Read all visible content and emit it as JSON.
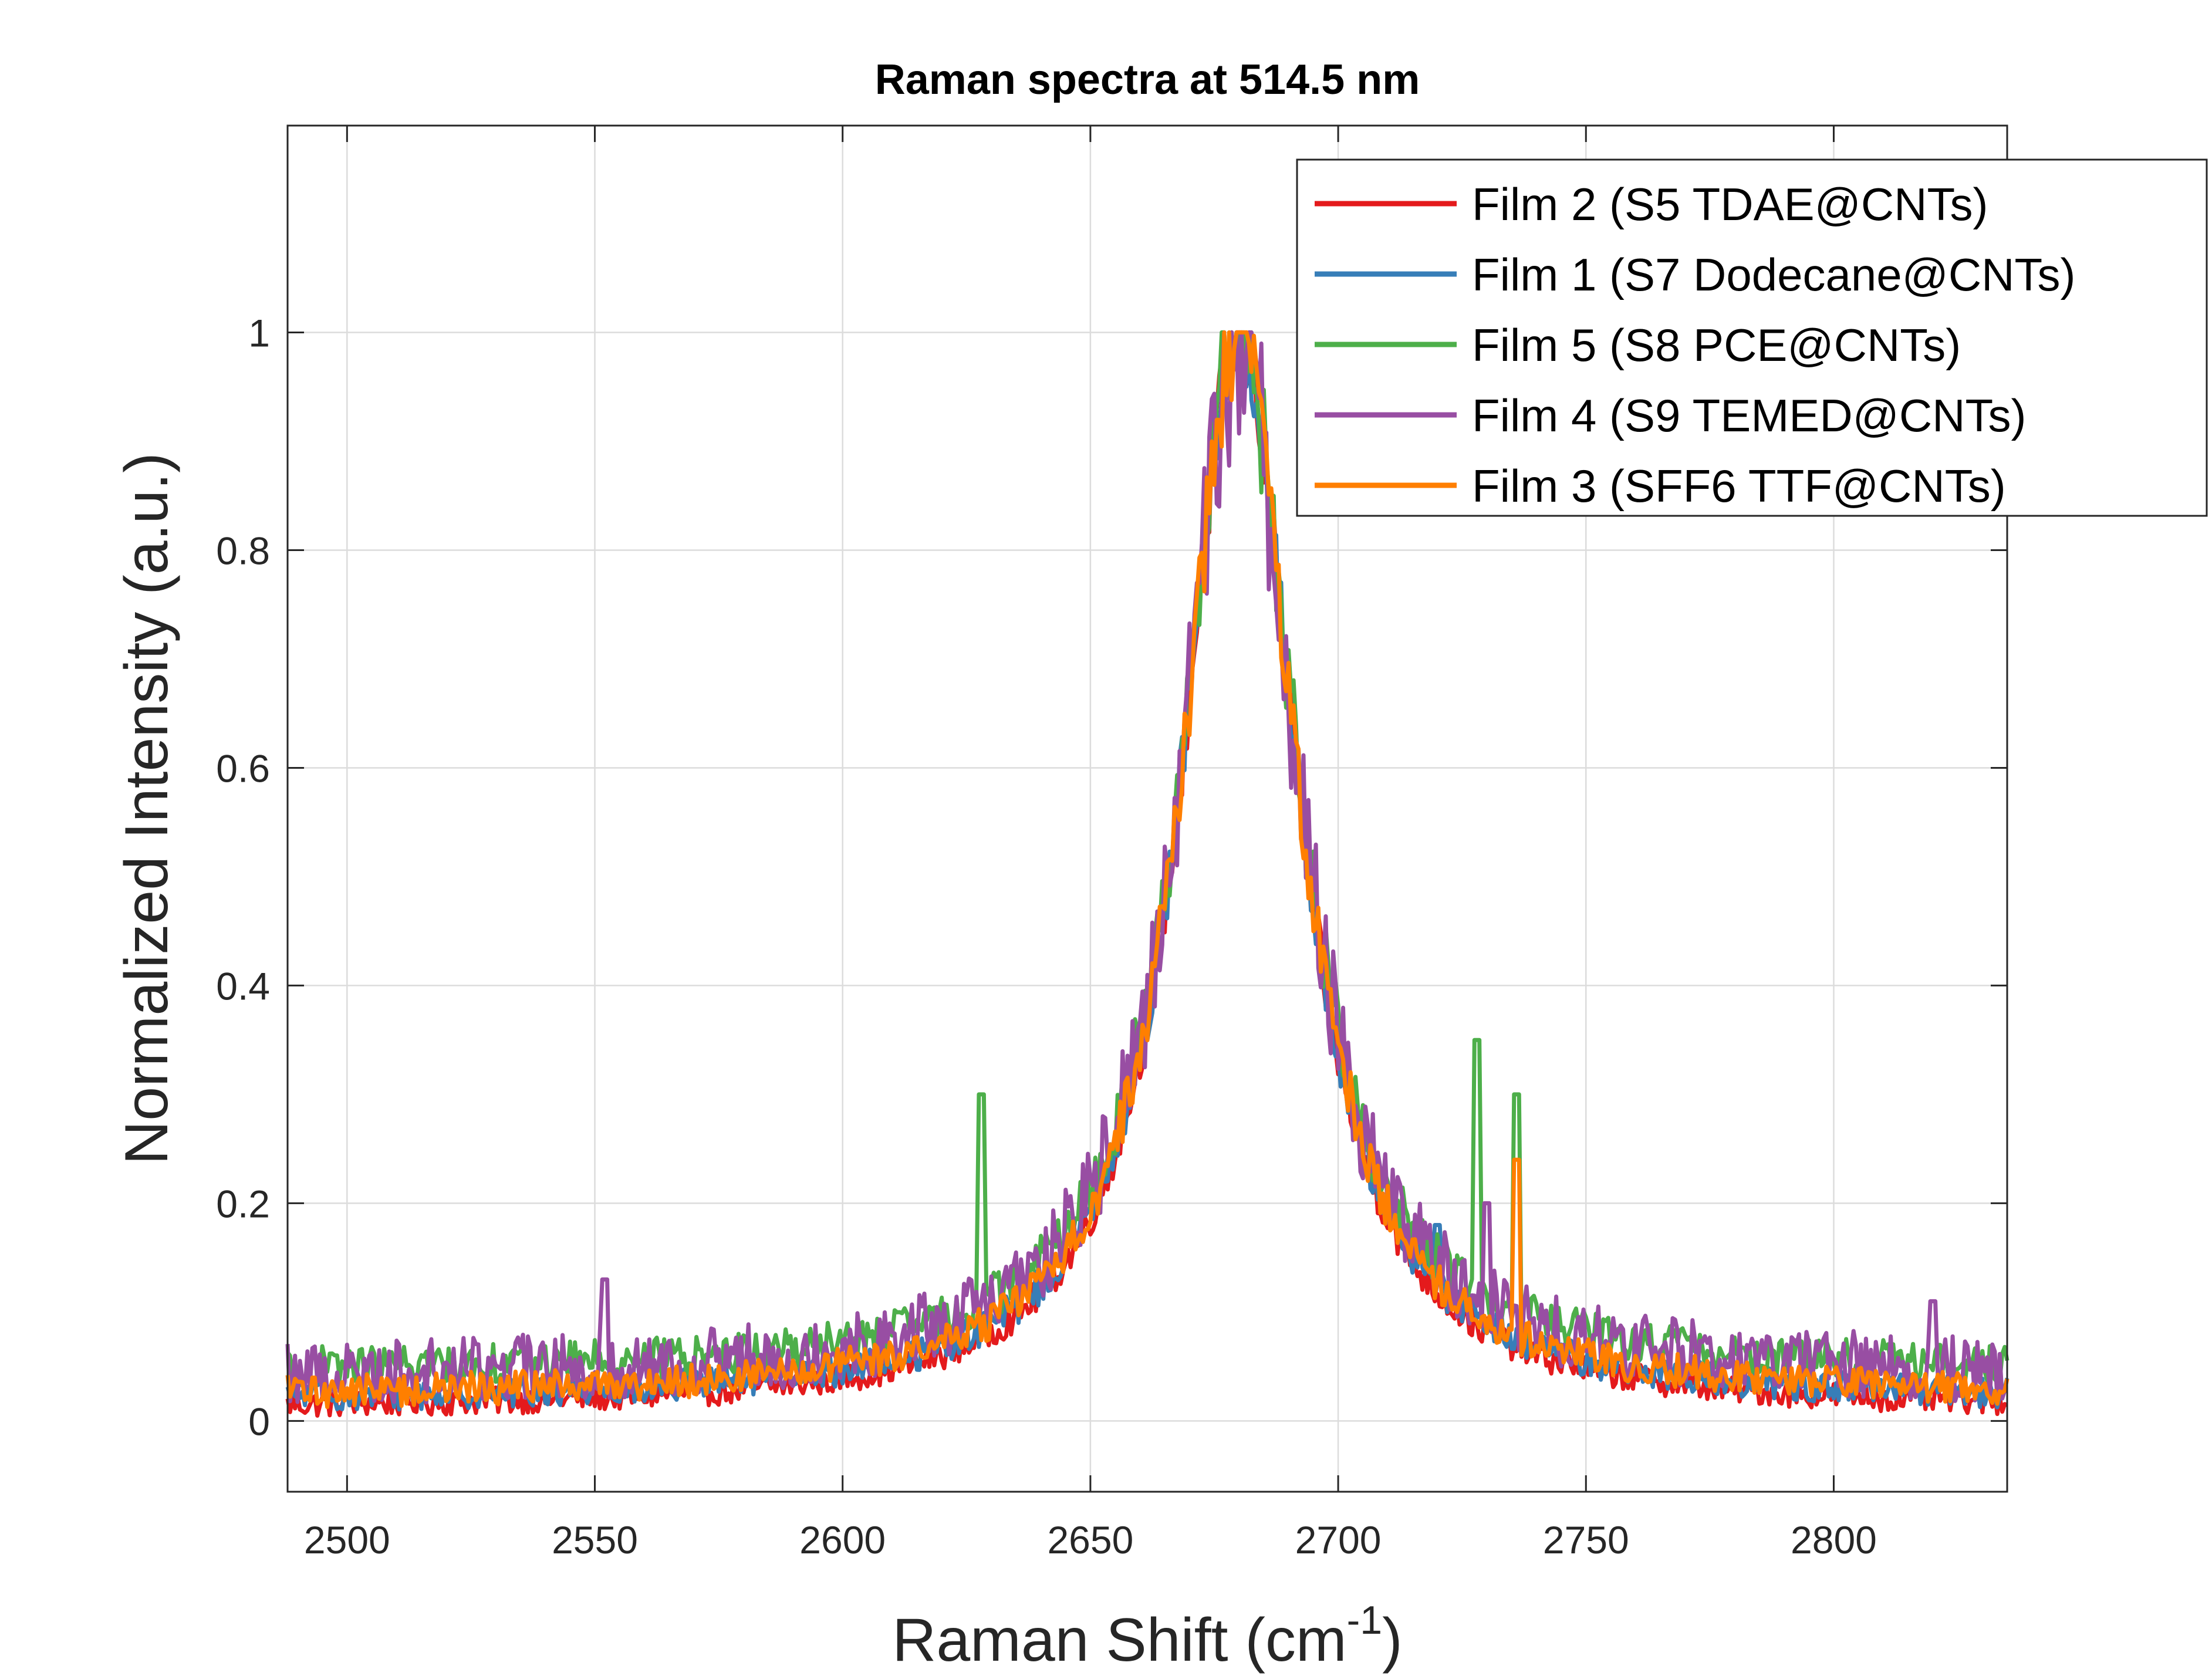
{
  "chart_data": {
    "type": "line",
    "title": "Raman spectra at 514.5 nm",
    "xlabel": "Raman Shift (cm",
    "xlabel_superscript": "-1",
    "xlabel_suffix": ")",
    "ylabel": "Normalized Intensity (a.u.)",
    "xlim": [
      2488,
      2835
    ],
    "ylim": [
      -0.065,
      1.19
    ],
    "xticks": [
      2500,
      2550,
      2600,
      2650,
      2700,
      2750,
      2800
    ],
    "xtick_labels": [
      "2500",
      "2550",
      "2600",
      "2650",
      "2700",
      "2750",
      "2800"
    ],
    "yticks": [
      0,
      0.2,
      0.4,
      0.6,
      0.8,
      1
    ],
    "ytick_labels": [
      "0",
      "0.2",
      "0.4",
      "0.6",
      "0.8",
      "1"
    ],
    "grid": true,
    "legend_position": "top-right",
    "peak": {
      "center": 2680,
      "hwhm": 14
    },
    "series": [
      {
        "name": "Film 2 (S5 TDAE@CNTs)",
        "color": "#e41a1c",
        "baseline": 0.01,
        "noise": 0.012,
        "spikes": []
      },
      {
        "name": "Film 1 (S7 Dodecane@CNTs)",
        "color": "#377eb8",
        "baseline": 0.018,
        "noise": 0.014,
        "spikes": [
          {
            "x": 2720,
            "y": 0.18
          }
        ]
      },
      {
        "name": "Film 5 (S8 PCE@CNTs)",
        "color": "#4daf4a",
        "baseline": 0.045,
        "noise": 0.018,
        "spikes": [
          {
            "x": 2628,
            "y": 0.3
          },
          {
            "x": 2728,
            "y": 0.35
          },
          {
            "x": 2736,
            "y": 0.3
          },
          {
            "x": 2679,
            "y": 0.9
          }
        ]
      },
      {
        "name": "Film 4 (S9 TEMED@CNTs)",
        "color": "#984ea3",
        "baseline": 0.04,
        "noise": 0.03,
        "spikes": [
          {
            "x": 2552,
            "y": 0.13
          },
          {
            "x": 2730,
            "y": 0.2
          },
          {
            "x": 2820,
            "y": 0.11
          }
        ]
      },
      {
        "name": "Film 3 (SFF6 TTF@CNTs)",
        "color": "#ff7f00",
        "baseline": 0.022,
        "noise": 0.015,
        "spikes": [
          {
            "x": 2736,
            "y": 0.24
          }
        ]
      }
    ]
  }
}
